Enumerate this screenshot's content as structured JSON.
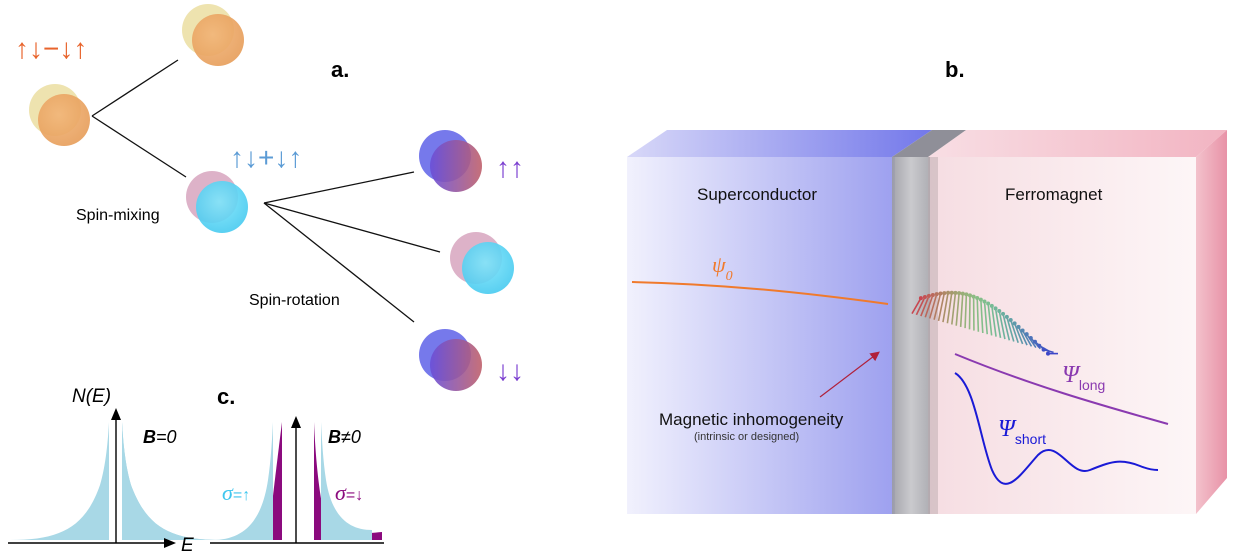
{
  "panel_a": {
    "label": "a.",
    "singlet_state": "↑↓−↓↑",
    "triplet0_state": "↑↓+↓↑",
    "spin_mixing": "Spin-mixing",
    "spin_rotation": "Spin-rotation",
    "up_up": "↑↑",
    "down_down": "↓↓"
  },
  "panel_b": {
    "label": "b.",
    "superconductor": "Superconductor",
    "ferromagnet": "Ferromagnet",
    "psi0_symbol": "ψ",
    "psi0_sub": "0",
    "psi_long_symbol": "Ψ",
    "psi_long_sub": "long",
    "psi_short_symbol": "Ψ",
    "psi_short_sub": "short",
    "inhomogeneity": "Magnetic inhomogeneity",
    "inhomogeneity_note": "(intrinsic or designed)"
  },
  "panel_c": {
    "label": "c.",
    "dos_label": "N(E)",
    "energy_label": "E",
    "b_zero_b": "B",
    "b_zero_rest": "=0",
    "b_nonzero_b": "B",
    "b_nonzero_rest": "≠0",
    "sigma_up_sym": "σ",
    "sigma_up_rest": "=↑",
    "sigma_down_sym": "σ",
    "sigma_down_rest": "=↓"
  },
  "colors": {
    "orange": "#e8642c",
    "blue_text": "#5b9bd5",
    "purple_text": "#7b3fd0",
    "dos_fill": "#a8d8e6",
    "dos_purple": "#8b0a7e",
    "psi_short": "#1a1ad6",
    "psi_long": "#8a3ab0"
  }
}
